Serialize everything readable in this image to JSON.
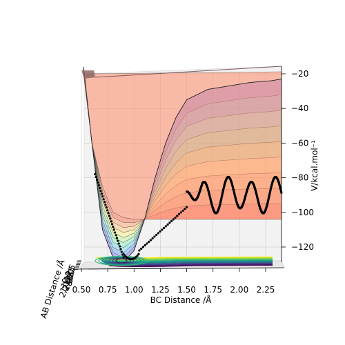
{
  "chart_data": {
    "type": "surface-3d",
    "xlabel": "BC Distance /Å",
    "ylabel": "AB Distance /Å",
    "zlabel": "V/kcal.mol⁻¹",
    "x_ticks": [
      "0.50",
      "0.75",
      "1.00",
      "1.25",
      "1.50",
      "1.75",
      "2.00",
      "2.25"
    ],
    "z_ticks": [
      "−20",
      "−40",
      "−60",
      "−80",
      "−100",
      "−120"
    ],
    "y_ticks_overlapping": [
      "0.5",
      "0.75",
      "1.0",
      "1.25",
      "1.5",
      "1.75",
      "2.0",
      "2.25"
    ],
    "xlim": [
      0.5,
      2.4
    ],
    "zlim": [
      -130,
      -15
    ],
    "surface_profile_V_vs_BC": {
      "x": [
        0.52,
        0.6,
        0.7,
        0.8,
        0.9,
        1.0,
        1.1,
        1.2,
        1.3,
        1.4,
        1.5,
        1.7,
        1.9,
        2.1,
        2.3,
        2.4
      ],
      "front_row_V": [
        -16,
        -60,
        -110,
        -126,
        -129,
        -122,
        -104,
        -80,
        -60,
        -45,
        -35,
        -29,
        -27,
        -25,
        -24,
        -23
      ],
      "back_row_V": [
        -20,
        -60,
        -85,
        -100,
        -103,
        -104,
        -104,
        -104,
        -104,
        -104,
        -104,
        -104,
        -104,
        -104,
        -104,
        -104
      ]
    },
    "trajectory": {
      "name": "",
      "color": "#000000",
      "description_points": "black dots tracing reaction path: descent into well near BC≈0.9, climb to ~-95, then oscillation between ≈-80 and ≈-100 beyond BC≈1.6"
    },
    "colormap": "jet (surface) / viridis (floor contours)",
    "grid": true
  }
}
